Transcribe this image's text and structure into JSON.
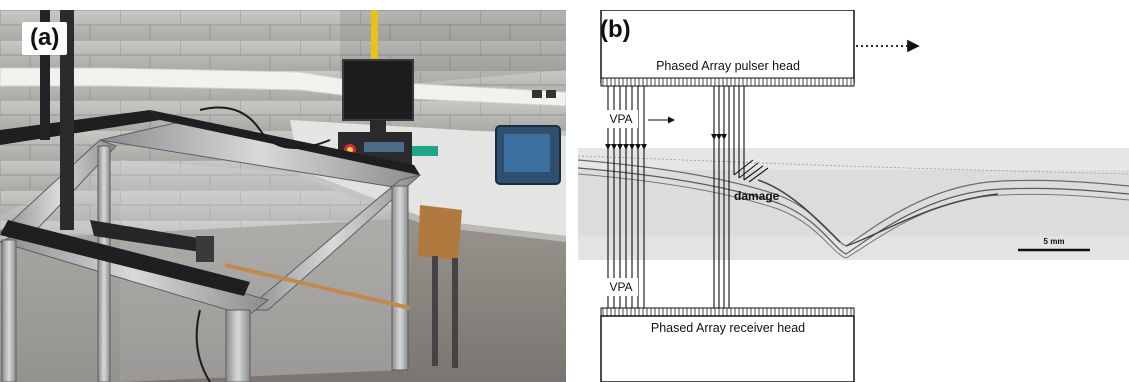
{
  "panel_a": {
    "label": "(a)"
  },
  "panel_b": {
    "label": "(b)",
    "pulser_head": "Phased Array pulser head",
    "receiver_head": "Phased Array receiver head",
    "vpa_top": "VPA",
    "vpa_bottom": "VPA",
    "damage": "damage",
    "scale_bar": "5 mm"
  }
}
